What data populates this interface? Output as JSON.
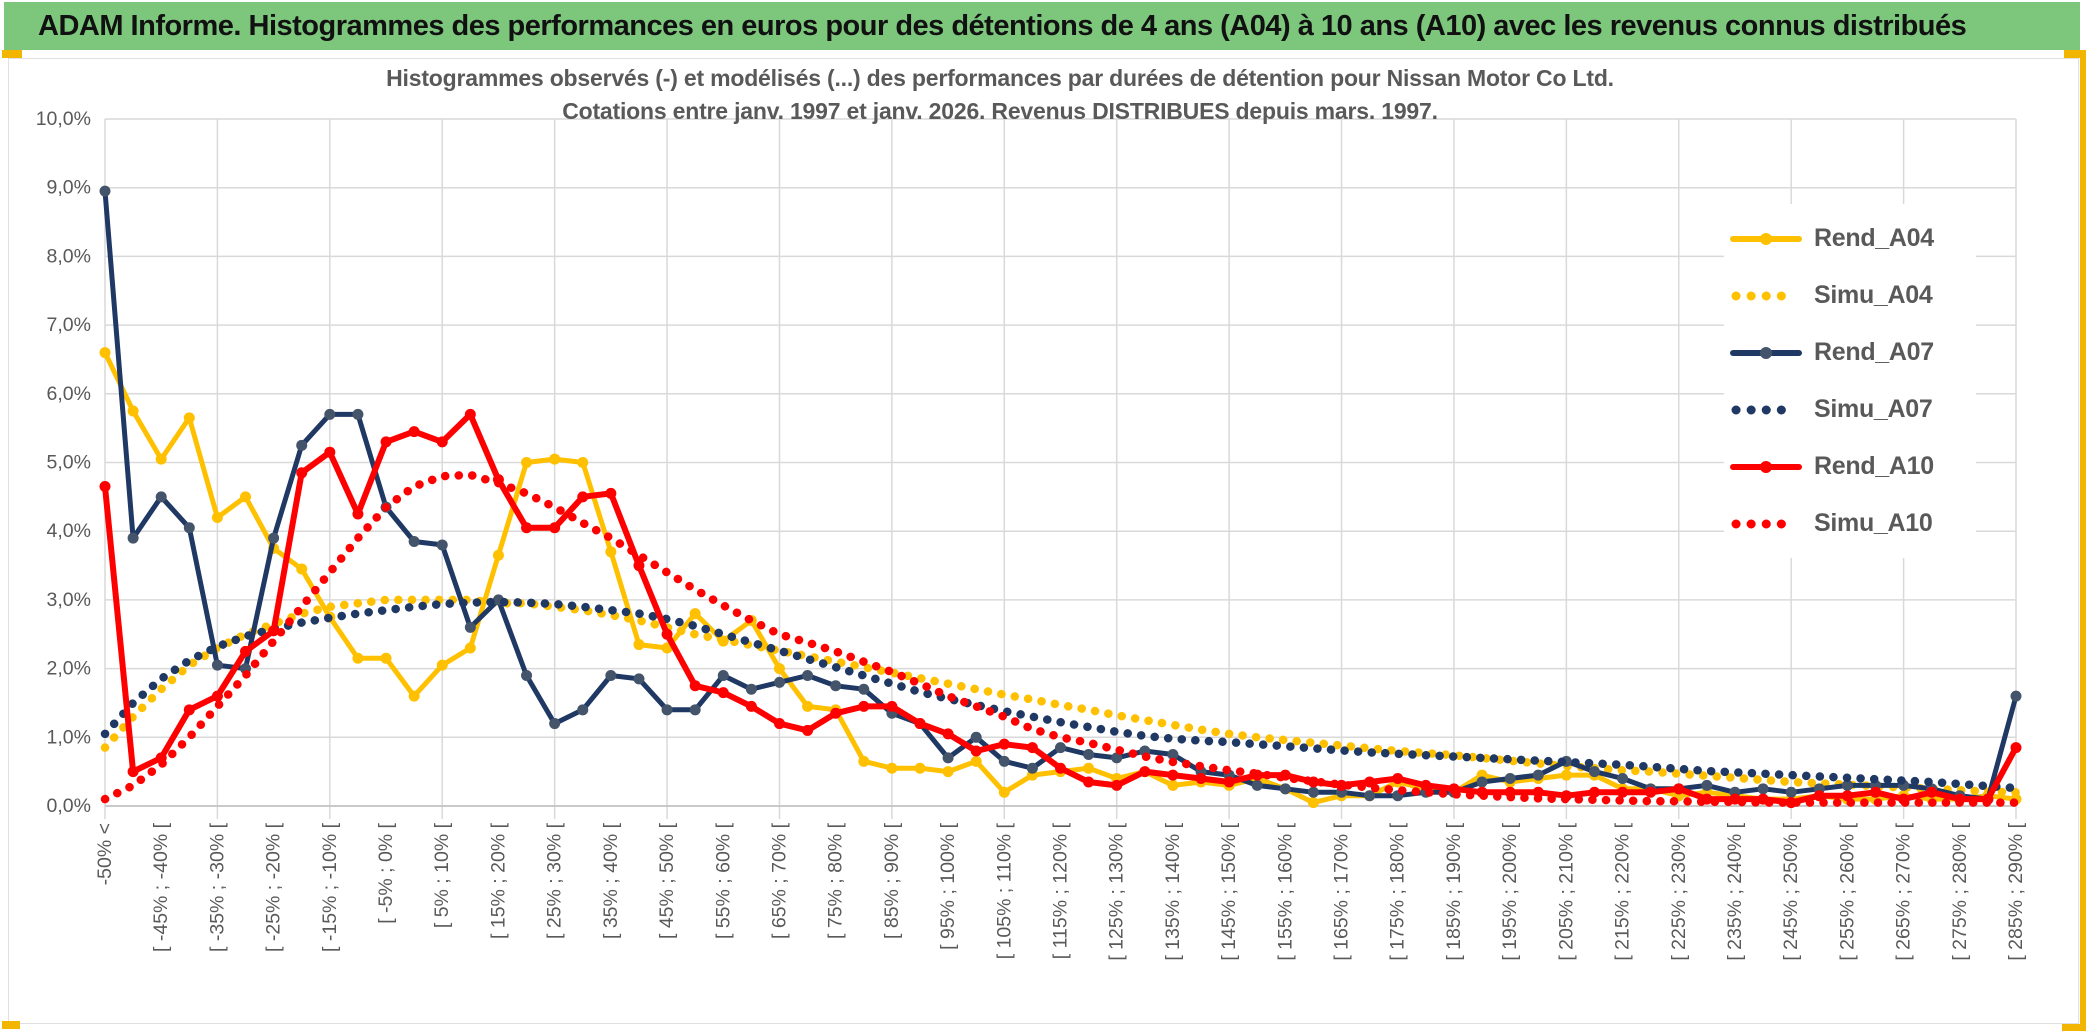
{
  "header": {
    "title": "ADAM Informe. Histogrammes des performances en euros pour des détentions de 4 ans (A04) à 10 ans (A10) avec les revenus connus distribués"
  },
  "colors": {
    "header_green": "#7DC77D",
    "accent_gold": "#F2B600",
    "grid_gray": "#D9D9D9",
    "text_gray": "#595959",
    "series_gold": "#FFC000",
    "series_navy": "#1F3864",
    "series_navy_marker": "#44546A",
    "series_red": "#FF0000"
  },
  "chart_data": {
    "type": "line",
    "title_line1": "Histogrammes observés (-) et modélisés (...) des performances par durées de détention pour Nissan Motor Co Ltd.",
    "title_line2": "Cotations entre janv. 1997 et janv. 2026. Revenus DISTRIBUES depuis mars. 1997.",
    "legend_position": "right-upper",
    "grid": true,
    "y_axis": {
      "min": 0,
      "max": 10,
      "unit": "%",
      "tick_labels": [
        "0,0%",
        "1,0%",
        "2,0%",
        "3,0%",
        "4,0%",
        "5,0%",
        "6,0%",
        "7,0%",
        "8,0%",
        "9,0%",
        "10,0%"
      ]
    },
    "x_axis": {
      "bins_count": 69,
      "note": "5%-wide performance bins from -50% to 290%; a label is shown for every other bin",
      "tick_labels": [
        "-50% <",
        "[ -45% ; -40% [",
        "[ -35% ; -30% [",
        "[ -25% ; -20% [",
        "[ -15% ; -10% [",
        "[ -5% ; 0% [",
        "[ 5% ; 10% [",
        "[ 15% ; 20% [",
        "[ 25% ; 30% [",
        "[ 35% ; 40% [",
        "[ 45% ; 50% [",
        "[ 55% ; 60% [",
        "[ 65% ; 70% [",
        "[ 75% ; 80% [",
        "[ 85% ; 90% [",
        "[ 95% ; 100% [",
        "[ 105% ; 110% [",
        "[ 115% ; 120% [",
        "[ 125% ; 130% [",
        "[ 135% ; 140% [",
        "[ 145% ; 150% [",
        "[ 155% ; 160% [",
        "[ 165% ; 170% [",
        "[ 175% ; 180% [",
        "[ 185% ; 190% [",
        "[ 195% ; 200% [",
        "[ 205% ; 210% [",
        "[ 215% ; 220% [",
        "[ 225% ; 230% [",
        "[ 235% ; 240% [",
        "[ 245% ; 250% [",
        "[ 255% ; 260% [",
        "[ 265% ; 270% [",
        "[ 275% ; 280% [",
        "[ 285% ; 290% ["
      ]
    },
    "series": [
      {
        "name": "Rend_A04",
        "color": "#FFC000",
        "marker_color": "#FFC000",
        "style": "solid",
        "width": 5,
        "values": [
          6.6,
          5.75,
          5.05,
          5.65,
          4.2,
          4.5,
          3.75,
          3.45,
          2.75,
          2.15,
          2.15,
          1.6,
          2.05,
          2.3,
          3.65,
          5.0,
          5.05,
          5.0,
          3.7,
          2.35,
          2.3,
          2.8,
          2.4,
          2.7,
          2.0,
          1.45,
          1.4,
          0.65,
          0.55,
          0.55,
          0.5,
          0.65,
          0.2,
          0.45,
          0.5,
          0.55,
          0.4,
          0.5,
          0.3,
          0.35,
          0.3,
          0.4,
          0.25,
          0.05,
          0.15,
          0.15,
          0.35,
          0.25,
          0.2,
          0.45,
          0.35,
          0.4,
          0.45,
          0.45,
          0.25,
          0.25,
          0.15,
          0.2,
          0.15,
          0.1,
          0.1,
          0.15,
          0.1,
          0.1,
          0.15,
          0.1,
          0.1,
          0.15,
          0.1
        ]
      },
      {
        "name": "Simu_A04",
        "color": "#FFC000",
        "marker_color": "#FFC000",
        "style": "dotted",
        "width": 8.5,
        "values": [
          0.85,
          1.3,
          1.7,
          2.05,
          2.3,
          2.5,
          2.65,
          2.8,
          2.9,
          2.95,
          3.0,
          3.0,
          3.0,
          3.0,
          2.95,
          2.95,
          2.9,
          2.85,
          2.78,
          2.7,
          2.6,
          2.5,
          2.42,
          2.34,
          2.26,
          2.18,
          2.1,
          2.02,
          1.94,
          1.86,
          1.78,
          1.7,
          1.62,
          1.55,
          1.47,
          1.4,
          1.32,
          1.25,
          1.18,
          1.11,
          1.05,
          1.0,
          0.96,
          0.92,
          0.88,
          0.84,
          0.8,
          0.77,
          0.74,
          0.7,
          0.66,
          0.62,
          0.58,
          0.55,
          0.52,
          0.5,
          0.47,
          0.44,
          0.41,
          0.38,
          0.35,
          0.33,
          0.31,
          0.29,
          0.27,
          0.25,
          0.23,
          0.21,
          0.2
        ]
      },
      {
        "name": "Rend_A07",
        "color": "#1F3864",
        "marker_color": "#44546A",
        "style": "solid",
        "width": 5,
        "values": [
          8.95,
          3.9,
          4.5,
          4.05,
          2.05,
          2.0,
          3.9,
          5.25,
          5.7,
          5.7,
          4.35,
          3.85,
          3.8,
          2.6,
          3.0,
          1.9,
          1.2,
          1.4,
          1.9,
          1.85,
          1.4,
          1.4,
          1.9,
          1.7,
          1.8,
          1.9,
          1.75,
          1.7,
          1.35,
          1.2,
          0.7,
          1.0,
          0.65,
          0.55,
          0.85,
          0.75,
          0.7,
          0.8,
          0.75,
          0.5,
          0.45,
          0.3,
          0.25,
          0.2,
          0.2,
          0.15,
          0.15,
          0.2,
          0.2,
          0.35,
          0.4,
          0.45,
          0.65,
          0.5,
          0.4,
          0.25,
          0.25,
          0.3,
          0.2,
          0.25,
          0.2,
          0.25,
          0.3,
          0.3,
          0.3,
          0.25,
          0.15,
          0.1,
          1.6
        ]
      },
      {
        "name": "Simu_A07",
        "color": "#1F3864",
        "marker_color": "#1F3864",
        "style": "dotted",
        "width": 8.5,
        "values": [
          1.05,
          1.5,
          1.85,
          2.12,
          2.32,
          2.47,
          2.58,
          2.67,
          2.74,
          2.8,
          2.85,
          2.9,
          2.94,
          2.96,
          2.97,
          2.96,
          2.94,
          2.9,
          2.85,
          2.8,
          2.72,
          2.62,
          2.5,
          2.38,
          2.26,
          2.14,
          2.02,
          1.9,
          1.78,
          1.66,
          1.56,
          1.47,
          1.38,
          1.3,
          1.22,
          1.15,
          1.08,
          1.02,
          0.98,
          0.95,
          0.93,
          0.9,
          0.87,
          0.84,
          0.81,
          0.78,
          0.76,
          0.74,
          0.72,
          0.7,
          0.68,
          0.66,
          0.64,
          0.62,
          0.6,
          0.57,
          0.54,
          0.51,
          0.49,
          0.47,
          0.45,
          0.43,
          0.41,
          0.39,
          0.37,
          0.35,
          0.32,
          0.29,
          0.26
        ]
      },
      {
        "name": "Rend_A10",
        "color": "#FF0000",
        "marker_color": "#FF0000",
        "style": "solid",
        "width": 6,
        "values": [
          4.65,
          0.5,
          0.7,
          1.4,
          1.6,
          2.25,
          2.55,
          4.85,
          5.15,
          4.25,
          5.3,
          5.45,
          5.3,
          5.7,
          4.75,
          4.05,
          4.05,
          4.5,
          4.55,
          3.5,
          2.5,
          1.75,
          1.65,
          1.45,
          1.2,
          1.1,
          1.35,
          1.45,
          1.45,
          1.2,
          1.05,
          0.8,
          0.9,
          0.85,
          0.55,
          0.35,
          0.3,
          0.5,
          0.45,
          0.4,
          0.35,
          0.45,
          0.45,
          0.35,
          0.3,
          0.35,
          0.4,
          0.3,
          0.25,
          0.2,
          0.2,
          0.2,
          0.15,
          0.2,
          0.2,
          0.2,
          0.25,
          0.1,
          0.1,
          0.1,
          0.05,
          0.15,
          0.15,
          0.2,
          0.1,
          0.2,
          0.1,
          0.1,
          0.85
        ]
      },
      {
        "name": "Simu_A10",
        "color": "#FF0000",
        "marker_color": "#FF0000",
        "style": "dotted",
        "width": 8.5,
        "values": [
          0.1,
          0.3,
          0.6,
          1.0,
          1.45,
          1.9,
          2.4,
          2.9,
          3.4,
          3.9,
          4.35,
          4.65,
          4.8,
          4.82,
          4.7,
          4.55,
          4.35,
          4.12,
          3.9,
          3.65,
          3.4,
          3.15,
          2.92,
          2.7,
          2.5,
          2.38,
          2.25,
          2.1,
          1.95,
          1.78,
          1.6,
          1.45,
          1.3,
          1.12,
          1.0,
          0.92,
          0.82,
          0.72,
          0.64,
          0.58,
          0.52,
          0.47,
          0.41,
          0.36,
          0.31,
          0.27,
          0.23,
          0.2,
          0.17,
          0.15,
          0.13,
          0.11,
          0.1,
          0.09,
          0.08,
          0.07,
          0.07,
          0.06,
          0.06,
          0.05,
          0.05,
          0.05,
          0.05,
          0.05,
          0.05,
          0.05,
          0.05,
          0.05,
          0.05
        ]
      }
    ]
  }
}
